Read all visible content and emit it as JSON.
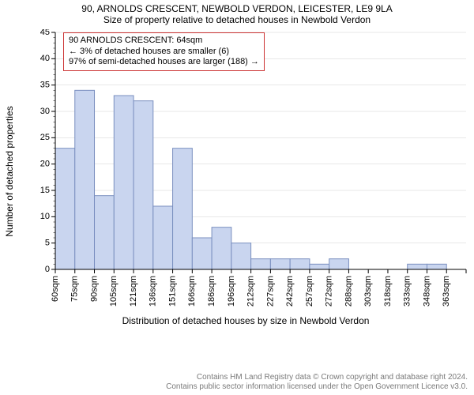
{
  "title_line1": "90, ARNOLDS CRESCENT, NEWBOLD VERDON, LEICESTER, LE9 9LA",
  "title_line2": "Size of property relative to detached houses in Newbold Verdon",
  "xlabel": "Distribution of detached houses by size in Newbold Verdon",
  "ylabel": "Number of detached properties",
  "legend": {
    "line1": "90 ARNOLDS CRESCENT: 64sqm",
    "line2": "← 3% of detached houses are smaller (6)",
    "line3": "97% of semi-detached houses are larger (188) →",
    "border_color": "#cc3333"
  },
  "chart": {
    "type": "histogram",
    "background_color": "#ffffff",
    "grid_color": "#d0d0d0",
    "axis_color": "#000000",
    "bar_fill": "#c9d5ef",
    "bar_stroke": "#7a8fbf",
    "bar_width": 1.0,
    "ylim": [
      0,
      45
    ],
    "ytick_step": 5,
    "y_minor_step": 1,
    "categories": [
      "60sqm",
      "75sqm",
      "90sqm",
      "105sqm",
      "121sqm",
      "136sqm",
      "151sqm",
      "166sqm",
      "186sqm",
      "196sqm",
      "212sqm",
      "227sqm",
      "242sqm",
      "257sqm",
      "272sqm",
      "288sqm",
      "303sqm",
      "318sqm",
      "333sqm",
      "348sqm",
      "363sqm"
    ],
    "values": [
      23,
      34,
      14,
      33,
      32,
      12,
      23,
      6,
      8,
      5,
      2,
      2,
      2,
      1,
      2,
      0,
      0,
      0,
      1,
      1,
      0
    ],
    "font_size_ticks": 11,
    "font_size_labels": 12
  },
  "footer": {
    "line1": "Contains HM Land Registry data © Crown copyright and database right 2024.",
    "line2": "Contains public sector information licensed under the Open Government Licence v3.0.",
    "color": "#7a7a7a"
  }
}
